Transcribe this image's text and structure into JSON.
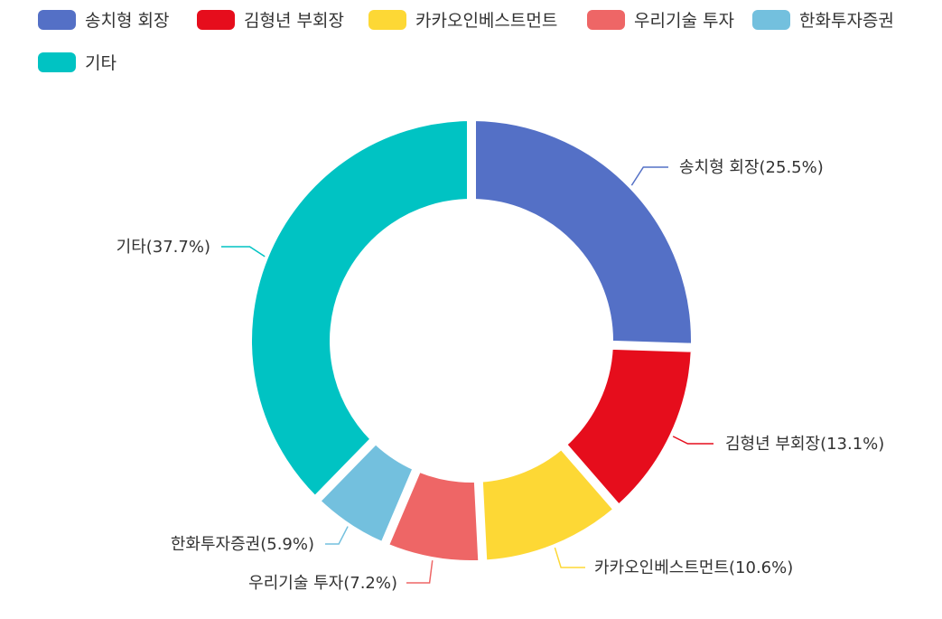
{
  "chart_data": {
    "type": "pie",
    "variant": "donut",
    "legend_position": "top",
    "categories": [
      "송치형 회장",
      "김형년 부회장",
      "카카오인베스트먼트",
      "우리기술 투자",
      "한화투자증권",
      "기타"
    ],
    "values": [
      25.5,
      13.1,
      10.6,
      7.2,
      5.9,
      37.7
    ],
    "colors": [
      "#5470c6",
      "#e60d1c",
      "#fdd835",
      "#ee6666",
      "#73c0de",
      "#00c3c3"
    ],
    "labels": [
      "송치형 회장(25.5%)",
      "김형년 부회장(13.1%)",
      "카카오인베스트먼트(10.6%)",
      "우리기술 투자(7.2%)",
      "한화투자증권(5.9%)",
      "기타(37.7%)"
    ]
  }
}
